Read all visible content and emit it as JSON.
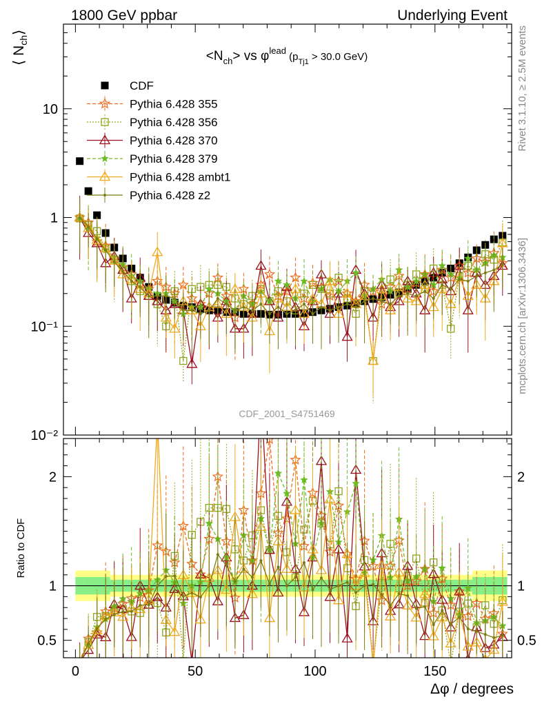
{
  "header": {
    "left": "1800 GeV ppbar",
    "right": "Underlying Event"
  },
  "side_labels": {
    "rivet": "Rivet 3.1.10, ≥ 2.5M events",
    "mcplots": "mcplots.cern.ch [arXiv:1306.3436]"
  },
  "watermark": "CDF_2001_S4751469",
  "chart_data": [
    {
      "type": "scatter",
      "title": "<Nch> vs φlead (pTj1 > 30.0 GeV)",
      "title_parts": {
        "lhs": "<N",
        "sub1": "ch",
        "mid": "> vs φ",
        "sup": "lead",
        "open": " (p",
        "sub2": "Tj1",
        "close": " > 30.0 GeV)"
      },
      "ylabel": "⟨ Nch ⟩",
      "xlabel": "Δφ / degrees",
      "yscale": "log",
      "xlim": [
        -5,
        182
      ],
      "ylim": [
        0.01,
        60
      ],
      "ytick_labels": [
        "10⁻²",
        "10⁻¹",
        "1",
        "10"
      ],
      "legend_position": "top-left",
      "x": [
        1.8,
        5.4,
        9.0,
        12.6,
        16.2,
        19.8,
        23.4,
        27.0,
        30.6,
        34.2,
        37.8,
        41.4,
        45.0,
        48.6,
        52.2,
        55.8,
        59.4,
        63.0,
        66.6,
        70.2,
        73.8,
        77.4,
        81.0,
        84.6,
        88.2,
        91.8,
        95.4,
        99.0,
        102.6,
        106.2,
        109.8,
        113.4,
        117.0,
        120.6,
        124.2,
        127.8,
        131.4,
        135.0,
        138.6,
        142.2,
        145.8,
        149.4,
        153.0,
        156.6,
        160.2,
        163.8,
        167.4,
        171.0,
        174.6,
        178.2
      ],
      "series": [
        {
          "name": "CDF",
          "color": "#000000",
          "marker": "square-filled",
          "values": [
            3.3,
            1.75,
            1.05,
            0.72,
            0.53,
            0.42,
            0.34,
            0.28,
            0.23,
            0.19,
            0.175,
            0.165,
            0.155,
            0.15,
            0.145,
            0.14,
            0.14,
            0.135,
            0.135,
            0.13,
            0.13,
            0.13,
            0.128,
            0.128,
            0.13,
            0.13,
            0.132,
            0.135,
            0.14,
            0.145,
            0.15,
            0.155,
            0.16,
            0.17,
            0.178,
            0.185,
            0.195,
            0.205,
            0.22,
            0.24,
            0.26,
            0.28,
            0.31,
            0.34,
            0.38,
            0.43,
            0.5,
            0.56,
            0.63,
            0.68
          ]
        },
        {
          "name": "Pythia 6.428 355",
          "color": "#ee6a1f",
          "marker": "star",
          "values": [
            1.0,
            0.9,
            0.6,
            0.55,
            0.42,
            0.35,
            0.3,
            0.25,
            0.22,
            0.26,
            0.23,
            0.2,
            0.24,
            0.18,
            0.16,
            0.2,
            0.28,
            0.19,
            0.12,
            0.22,
            0.16,
            0.24,
            0.3,
            0.19,
            0.21,
            0.28,
            0.18,
            0.25,
            0.23,
            0.19,
            0.26,
            0.2,
            0.17,
            0.24,
            0.21,
            0.16,
            0.23,
            0.29,
            0.22,
            0.25,
            0.3,
            0.21,
            0.33,
            0.28,
            0.36,
            0.31,
            0.42,
            0.39,
            0.47,
            0.38
          ]
        },
        {
          "name": "Pythia 6.428 356",
          "color": "#8fa61b",
          "marker": "square-open",
          "values": [
            0.98,
            0.85,
            0.75,
            0.52,
            0.41,
            0.33,
            0.26,
            0.21,
            0.19,
            0.16,
            0.1,
            0.21,
            0.048,
            0.22,
            0.23,
            0.24,
            0.24,
            0.23,
            0.18,
            0.16,
            0.19,
            0.22,
            0.17,
            0.21,
            0.17,
            0.14,
            0.2,
            0.24,
            0.22,
            0.2,
            0.28,
            0.18,
            0.13,
            0.21,
            0.048,
            0.19,
            0.27,
            0.2,
            0.24,
            0.3,
            0.22,
            0.34,
            0.24,
            0.095,
            0.29,
            0.36,
            0.31,
            0.46,
            0.41,
            0.59
          ]
        },
        {
          "name": "Pythia 6.428 370",
          "color": "#9b0f1f",
          "marker": "triangle-open",
          "values": [
            1.0,
            0.72,
            0.58,
            0.38,
            0.44,
            0.33,
            0.18,
            0.28,
            0.19,
            0.17,
            0.14,
            0.16,
            0.14,
            0.045,
            0.16,
            0.15,
            0.12,
            0.17,
            0.095,
            0.095,
            0.13,
            0.36,
            0.17,
            0.12,
            0.23,
            0.15,
            0.1,
            0.17,
            0.3,
            0.13,
            0.2,
            0.08,
            0.33,
            0.2,
            0.12,
            0.24,
            0.15,
            0.17,
            0.26,
            0.2,
            0.14,
            0.31,
            0.27,
            0.21,
            0.36,
            0.14,
            0.31,
            0.24,
            0.29,
            0.36
          ]
        },
        {
          "name": "Pythia 6.428 379",
          "color": "#6dbb25",
          "marker": "star-small",
          "values": [
            0.98,
            0.8,
            0.65,
            0.5,
            0.43,
            0.37,
            0.29,
            0.26,
            0.22,
            0.2,
            0.2,
            0.17,
            0.13,
            0.15,
            0.15,
            0.22,
            0.2,
            0.17,
            0.14,
            0.19,
            0.16,
            0.21,
            0.17,
            0.26,
            0.24,
            0.18,
            0.26,
            0.17,
            0.22,
            0.27,
            0.21,
            0.26,
            0.31,
            0.19,
            0.22,
            0.27,
            0.21,
            0.33,
            0.23,
            0.26,
            0.3,
            0.24,
            0.36,
            0.3,
            0.28,
            0.42,
            0.33,
            0.38,
            0.45,
            0.43
          ]
        },
        {
          "name": "Pythia 6.428 ambt1",
          "color": "#f0a81c",
          "marker": "triangle-open",
          "values": [
            1.0,
            0.8,
            0.62,
            0.52,
            0.4,
            0.3,
            0.27,
            0.22,
            0.2,
            0.48,
            0.12,
            0.095,
            0.17,
            0.14,
            0.1,
            0.15,
            0.16,
            0.13,
            0.22,
            0.15,
            0.12,
            0.2,
            0.09,
            0.18,
            0.15,
            0.22,
            0.13,
            0.18,
            0.16,
            0.26,
            0.13,
            0.2,
            0.16,
            0.19,
            0.048,
            0.22,
            0.14,
            0.23,
            0.18,
            0.17,
            0.24,
            0.15,
            0.22,
            0.16,
            0.28,
            0.19,
            0.24,
            0.18,
            0.26,
            0.58
          ]
        },
        {
          "name": "Pythia 6.428 z2",
          "color": "#7b7b12",
          "marker": "dot",
          "values": [
            1.0,
            0.82,
            0.64,
            0.5,
            0.39,
            0.32,
            0.26,
            0.23,
            0.19,
            0.19,
            0.19,
            0.18,
            0.14,
            0.14,
            0.13,
            0.14,
            0.18,
            0.16,
            0.14,
            0.15,
            0.14,
            0.16,
            0.13,
            0.15,
            0.13,
            0.14,
            0.16,
            0.13,
            0.15,
            0.14,
            0.15,
            0.16,
            0.15,
            0.17,
            0.18,
            0.17,
            0.16,
            0.19,
            0.2,
            0.19,
            0.21,
            0.18,
            0.24,
            0.22,
            0.27,
            0.26,
            0.29,
            0.31,
            0.33,
            0.37
          ]
        }
      ]
    },
    {
      "type": "scatter",
      "title": "",
      "ylabel": "Ratio to CDF",
      "xlabel": "Δφ / degrees",
      "xlim": [
        -5,
        182
      ],
      "ylim": [
        0.34,
        2.35
      ],
      "ytick_labels": [
        "0.5",
        "1",
        "2"
      ],
      "xtick_labels": [
        "0",
        "50",
        "100",
        "150"
      ],
      "reference_line": 1,
      "band_colors": {
        "inner": "#88ee88",
        "outer": "#ffff88"
      },
      "note": "ratio = series value / CDF value"
    }
  ]
}
